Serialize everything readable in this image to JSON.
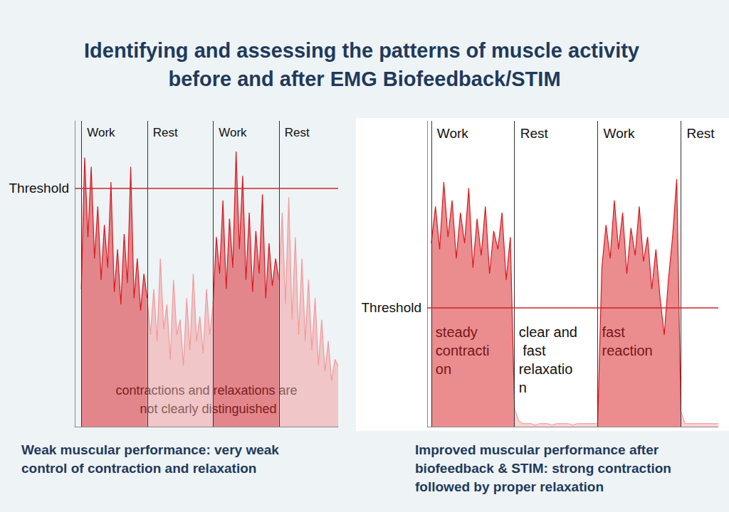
{
  "title": "Identifying and assessing the patterns of muscle activity before and after EMG Biofeedback/STIM",
  "chart_data": [
    {
      "type": "line",
      "caption": "Weak muscular performance: very weak control of contraction and relaxation",
      "xlim": [
        0,
        40
      ],
      "ylim": [
        0,
        100
      ],
      "tick_labels": false,
      "threshold": {
        "label": "Threshold",
        "value": 78
      },
      "annotation": "contractions and relaxations are not clearly distinguished",
      "phases": [
        {
          "label": "Work",
          "start": 1,
          "end": 11,
          "color": "#d7191f"
        },
        {
          "label": "Rest",
          "start": 11,
          "end": 21,
          "color": "#f29a9a"
        },
        {
          "label": "Work",
          "start": 21,
          "end": 31,
          "color": "#d7191f"
        },
        {
          "label": "Rest",
          "start": 31,
          "end": 40,
          "color": "#f29a9a"
        }
      ],
      "x": [
        1,
        1.5,
        2,
        2.5,
        3,
        3.5,
        4,
        4.5,
        5,
        5.5,
        6,
        6.5,
        7,
        7.5,
        8,
        8.5,
        9,
        9.5,
        10,
        10.5,
        11,
        11.5,
        12,
        12.5,
        13,
        13.5,
        14,
        14.5,
        15,
        15.5,
        16,
        16.5,
        17,
        17.5,
        18,
        18.5,
        19,
        19.5,
        20,
        20.5,
        21,
        21.5,
        22,
        22.5,
        23,
        23.5,
        24,
        24.5,
        25,
        25.5,
        26,
        26.5,
        27,
        27.5,
        28,
        28.5,
        29,
        29.5,
        30,
        30.5,
        31,
        31.5,
        32,
        32.5,
        33,
        33.5,
        34,
        34.5,
        35,
        35.5,
        36,
        36.5,
        37,
        37.5,
        38,
        38.5,
        39,
        39.5,
        40
      ],
      "values": [
        45,
        88,
        62,
        85,
        55,
        72,
        48,
        66,
        52,
        80,
        44,
        58,
        40,
        63,
        47,
        85,
        42,
        55,
        38,
        50,
        42,
        30,
        45,
        28,
        55,
        32,
        40,
        22,
        48,
        30,
        35,
        20,
        42,
        25,
        50,
        28,
        36,
        24,
        45,
        30,
        40,
        62,
        50,
        74,
        45,
        68,
        52,
        90,
        58,
        82,
        48,
        70,
        44,
        64,
        50,
        76,
        42,
        60,
        46,
        55,
        48,
        70,
        40,
        75,
        35,
        62,
        30,
        55,
        28,
        48,
        25,
        42,
        20,
        35,
        18,
        28,
        15,
        22,
        20
      ]
    },
    {
      "type": "line",
      "caption": "Improved muscular performance after biofeedback & STIM: strong contraction followed by proper relaxation",
      "xlim": [
        0,
        35
      ],
      "ylim": [
        0,
        100
      ],
      "tick_labels": false,
      "threshold": {
        "label": "Threshold",
        "value": 39
      },
      "phases": [
        {
          "label": "Work",
          "start": 0.5,
          "end": 10.5,
          "color": "#d7191f",
          "note": "steady contraction"
        },
        {
          "label": "Rest",
          "start": 10.5,
          "end": 20.5,
          "color": "#f4a6a6",
          "note": "clear and fast relaxation"
        },
        {
          "label": "Work",
          "start": 20.5,
          "end": 30.5,
          "color": "#d7191f",
          "note": "fast reaction"
        },
        {
          "label": "Rest",
          "start": 30.5,
          "end": 35,
          "color": "#f4a6a6"
        }
      ],
      "x": [
        0.5,
        1,
        1.5,
        2,
        2.5,
        3,
        3.5,
        4,
        4.5,
        5,
        5.5,
        6,
        6.5,
        7,
        7.5,
        8,
        8.5,
        9,
        9.5,
        10,
        10.5,
        11,
        11.5,
        12,
        12.5,
        13,
        13.5,
        14,
        14.5,
        15,
        15.5,
        16,
        16.5,
        17,
        17.5,
        18,
        18.5,
        19,
        19.5,
        20,
        20.5,
        21,
        21.5,
        22,
        22.5,
        23,
        23.5,
        24,
        24.5,
        25,
        25.5,
        26,
        26.5,
        27,
        27.5,
        28,
        28.5,
        29,
        29.5,
        30,
        30.5,
        31,
        31.5,
        32,
        32.5,
        33,
        33.5,
        34,
        34.5,
        35
      ],
      "values": [
        60,
        72,
        58,
        80,
        62,
        74,
        55,
        70,
        60,
        78,
        52,
        68,
        56,
        72,
        50,
        64,
        58,
        70,
        48,
        62,
        6,
        2,
        1,
        1,
        1,
        0.5,
        1,
        1,
        1,
        0.5,
        1,
        1,
        1,
        1,
        0.5,
        1,
        1,
        1,
        1,
        1,
        1,
        52,
        66,
        55,
        74,
        58,
        70,
        50,
        65,
        56,
        72,
        54,
        62,
        45,
        58,
        42,
        30,
        48,
        62,
        81,
        5,
        1,
        1,
        1,
        1,
        1,
        1,
        1,
        1,
        1
      ]
    }
  ]
}
